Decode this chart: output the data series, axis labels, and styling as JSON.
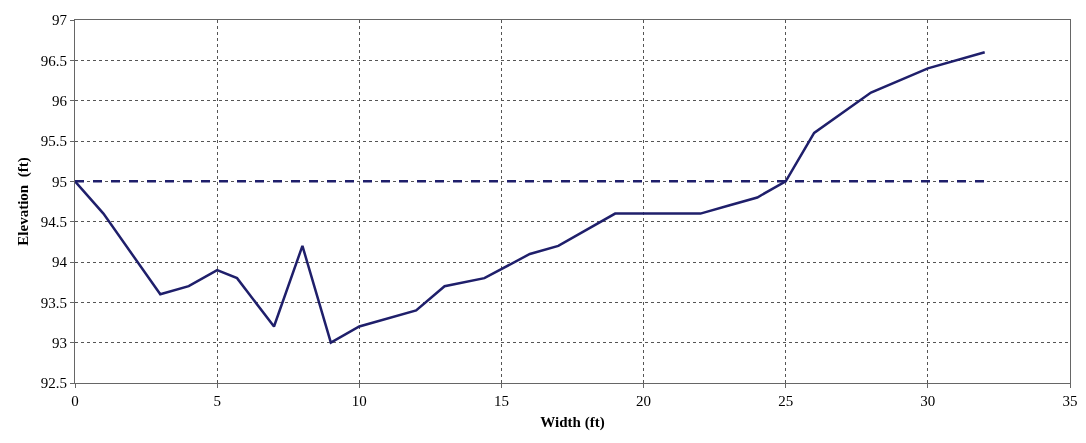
{
  "chart_data": {
    "type": "line",
    "xlabel": "Width (ft)",
    "ylabel": "Elevation  (ft)",
    "xlim": [
      0,
      35
    ],
    "xticks": [
      0,
      5,
      10,
      15,
      20,
      25,
      30,
      35
    ],
    "ylim": [
      92.5,
      97
    ],
    "yticks": [
      92.5,
      93,
      93.5,
      94,
      94.5,
      95,
      95.5,
      96,
      96.5,
      97
    ],
    "grid": true,
    "marker": "none",
    "series": [
      {
        "color": "#1f1f6b",
        "line_style": "solid",
        "x": [
          0,
          1,
          3,
          4,
          5,
          5.7,
          7,
          8,
          9,
          10,
          12,
          13,
          14.4,
          16,
          17,
          19,
          22,
          23,
          24,
          25,
          26,
          28,
          30,
          32
        ],
        "values": [
          95,
          94.6,
          93.6,
          93.7,
          93.9,
          93.8,
          93.2,
          94.2,
          93,
          93.2,
          93.4,
          93.7,
          93.8,
          94.1,
          94.2,
          94.6,
          94.6,
          94.7,
          94.8,
          95,
          95.6,
          96.1,
          96.4,
          96.6
        ]
      },
      {
        "color": "#1f1f6b",
        "line_style": "dashed",
        "x": [
          0,
          32
        ],
        "values": [
          95,
          95
        ]
      }
    ]
  }
}
